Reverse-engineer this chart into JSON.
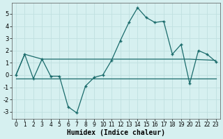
{
  "title": "",
  "xlabel": "Humidex (Indice chaleur)",
  "bg_color": "#d6f0f0",
  "grid_color": "#c0e0e0",
  "line_color": "#1a6b6b",
  "curve_x": [
    0,
    1,
    2,
    3,
    4,
    5,
    6,
    7,
    8,
    9,
    10,
    11,
    12,
    13,
    14,
    15,
    16,
    17,
    18,
    19,
    20,
    21,
    22,
    23
  ],
  "curve_y": [
    0.0,
    1.7,
    -0.3,
    1.3,
    -0.1,
    -0.1,
    -2.6,
    -3.1,
    -0.9,
    -0.2,
    0.0,
    1.2,
    2.8,
    4.3,
    5.5,
    4.7,
    4.3,
    4.4,
    1.7,
    2.5,
    -0.7,
    2.0,
    1.7,
    1.1
  ],
  "trend1_x": [
    0,
    23
  ],
  "trend1_y": [
    -0.3,
    -0.3
  ],
  "trend2_x": [
    0,
    1,
    3,
    10,
    20,
    23
  ],
  "trend2_y": [
    0.0,
    1.7,
    1.3,
    1.3,
    1.3,
    1.2
  ],
  "ylim": [
    -3.6,
    5.9
  ],
  "xlim": [
    -0.5,
    23.5
  ],
  "yticks": [
    -3,
    -2,
    -1,
    0,
    1,
    2,
    3,
    4,
    5
  ],
  "xticks": [
    0,
    1,
    2,
    3,
    4,
    5,
    6,
    7,
    8,
    9,
    10,
    11,
    12,
    13,
    14,
    15,
    16,
    17,
    18,
    19,
    20,
    21,
    22,
    23
  ]
}
